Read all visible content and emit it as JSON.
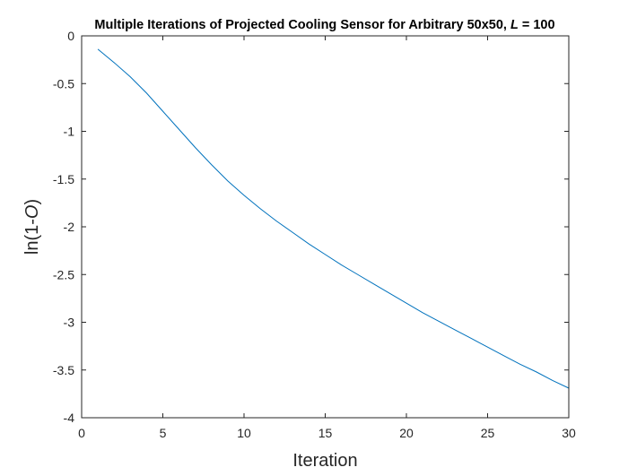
{
  "chart_data": {
    "type": "line",
    "title": "Multiple Iterations of Projected Cooling Sensor for Arbitrary 50x50, ",
    "title_italic": "L",
    "title_suffix": " = 100",
    "xlabel": "Iteration",
    "ylabel": "ln(1-",
    "ylabel_italic": "O",
    "ylabel_suffix": ")",
    "xlim": [
      0,
      30
    ],
    "ylim": [
      -4,
      0
    ],
    "xticks": [
      0,
      5,
      10,
      15,
      20,
      25,
      30
    ],
    "xtick_labels": [
      "0",
      "5",
      "10",
      "15",
      "20",
      "25",
      "30"
    ],
    "yticks": [
      0,
      -0.5,
      -1,
      -1.5,
      -2,
      -2.5,
      -3,
      -3.5,
      -4
    ],
    "ytick_labels": [
      "0",
      "-0.5",
      "-1",
      "-1.5",
      "-2",
      "-2.5",
      "-3",
      "-3.5",
      "-4"
    ],
    "grid": false,
    "series": [
      {
        "color": "#0072BD",
        "x": [
          1,
          2,
          3,
          4,
          5,
          6,
          7,
          8,
          9,
          10,
          11,
          12,
          13,
          14,
          15,
          16,
          17,
          18,
          19,
          20,
          21,
          22,
          23,
          24,
          25,
          26,
          27,
          28,
          29,
          30
        ],
        "y": [
          -0.14,
          -0.28,
          -0.43,
          -0.6,
          -0.79,
          -0.98,
          -1.17,
          -1.35,
          -1.52,
          -1.67,
          -1.81,
          -1.94,
          -2.06,
          -2.18,
          -2.29,
          -2.4,
          -2.5,
          -2.6,
          -2.7,
          -2.8,
          -2.9,
          -2.99,
          -3.08,
          -3.17,
          -3.26,
          -3.35,
          -3.44,
          -3.52,
          -3.61,
          -3.69
        ]
      }
    ]
  }
}
